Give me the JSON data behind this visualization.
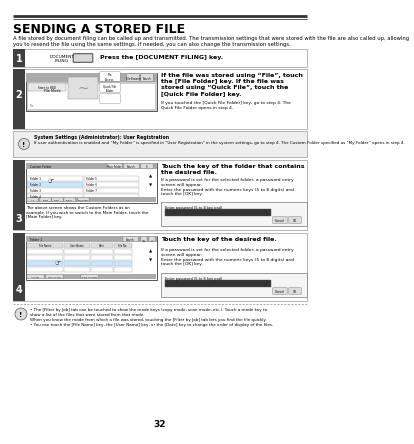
{
  "title": "SENDING A STORED FILE",
  "intro_text": "A file stored by document filing can be called up and transmitted. The transmission settings that were stored with the file are also called up, allowing you to resend the file using the same settings. If needed, you can also change the transmission settings.",
  "step1_instruction": "Press the [DOCUMENT FILING] key.",
  "step2_instruction_bold": "If the file was stored using “File”, touch\nthe [File Folder] key. If the file was\nstored using “Quick File”, touch the\n[Quick File Folder] key.",
  "step2_sub": "If you touched the [Quick File Folder] key, go to step 4. The\nQuick File Folder opens in step 4.",
  "step2_warn_title": "System Settings (Administrator): User Registration",
  "step2_warn_body": "If user authentication is enabled and “My Folder” is specified in “User Registration” in the system settings, go to step 4. The Custom Folder specified as “My Folder” opens in step 4.",
  "step3_instruction_bold": "Touch the key of the folder that contains\nthe desired file.",
  "step3_sub": "If a password is set for the selected folder, a password entry\nscreen will appear.\nEnter the password with the numeric keys (5 to 8 digits) and\ntouch the [OK] key.",
  "step3_screen_note": "The above screen shows the Custom Folders as an\nexample. If you wish to switch to the Main Folder, touch the\n[Main Folder] key.",
  "step4_instruction_bold": "Touch the key of the desired file.",
  "step4_sub": "If a password is set for the selected folder, a password entry\nscreen will appear.\nEnter the password with the numeric keys (5 to 8 digits) and\ntouch the [OK] key.",
  "footer_icon_note": "• The [Filter by Job] tab can be touched to show the mode keys (copy mode, scan mode, etc.). Touch a mode key to\nshow a list of the files that were stored from that mode.\nWhen you know the mode from which a file was stored, touching the [Filter by Job] tab lets you find the file quickly.",
  "footer_bullet2": "• You can touch the [File Name] key, the [User Name] key, or the [Date] key to change the order of display of the files.",
  "page_num": "32",
  "bg_color": "#ffffff",
  "header_line_color": "#333333",
  "step_num_bg": "#404040",
  "border_color": "#999999",
  "warn_bg": "#eeeeee",
  "screen_bg": "#cccccc",
  "screen_dark": "#555555"
}
